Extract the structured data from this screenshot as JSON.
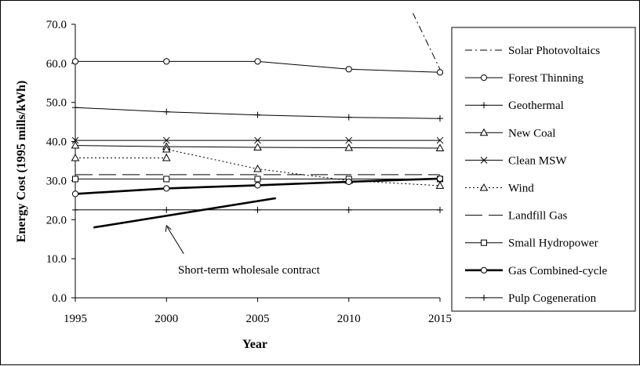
{
  "chart_data": {
    "type": "line",
    "title": "",
    "xlabel": "Year",
    "ylabel": "Energy Cost (1995 mills/kWh)",
    "x": [
      1995,
      2000,
      2005,
      2010,
      2015
    ],
    "xlim": [
      1995,
      2015
    ],
    "ylim": [
      0,
      70
    ],
    "y_ticks": [
      "0.0",
      "10.0",
      "20.0",
      "30.0",
      "40.0",
      "50.0",
      "60.0",
      "70.0"
    ],
    "x_ticks": [
      "1995",
      "2000",
      "2005",
      "2010",
      "2015"
    ],
    "grid": false,
    "legend_position": "right",
    "series": [
      {
        "name": "Solar Photovoltaics",
        "style": "dash-dot",
        "marker": "none",
        "x": [
          2013.5,
          2015
        ],
        "values": [
          73,
          58.5
        ]
      },
      {
        "name": "Forest Thinning",
        "style": "solid",
        "marker": "circle",
        "x": [
          1995,
          2000,
          2005,
          2010,
          2015
        ],
        "values": [
          60.5,
          60.5,
          60.5,
          58.5,
          57.7
        ]
      },
      {
        "name": "Geothermal",
        "style": "solid",
        "marker": "plus",
        "x": [
          1995,
          2000,
          2005,
          2010,
          2015
        ],
        "values": [
          48.7,
          47.6,
          46.8,
          46.2,
          45.9
        ]
      },
      {
        "name": "New Coal",
        "style": "solid",
        "marker": "triangle",
        "x": [
          1995,
          2000,
          2005,
          2010,
          2015
        ],
        "values": [
          39.0,
          38.7,
          38.5,
          38.4,
          38.3
        ]
      },
      {
        "name": "Clean MSW",
        "style": "solid",
        "marker": "x",
        "x": [
          1995,
          2000,
          2005,
          2010,
          2015
        ],
        "values": [
          40.3,
          40.3,
          40.3,
          40.3,
          40.3
        ]
      },
      {
        "name": "Wind",
        "style": "dotted",
        "marker": "triangle",
        "x": [
          1995,
          2000,
          2000,
          2005,
          2010,
          2015
        ],
        "values": [
          35.8,
          35.8,
          38.0,
          33.0,
          30.0,
          28.7
        ]
      },
      {
        "name": "Landfill Gas",
        "style": "long-dash",
        "marker": "none",
        "x": [
          1995,
          2015
        ],
        "values": [
          31.5,
          31.5
        ]
      },
      {
        "name": "Small Hydropower",
        "style": "solid",
        "marker": "square",
        "x": [
          1995,
          2000,
          2005,
          2010,
          2015
        ],
        "values": [
          30.4,
          30.4,
          30.4,
          30.4,
          30.4
        ]
      },
      {
        "name": "Gas Combined-cycle",
        "style": "thick",
        "marker": "circle",
        "x": [
          1995,
          2000,
          2005,
          2010,
          2015
        ],
        "values": [
          26.6,
          28.0,
          28.8,
          29.7,
          30.5
        ]
      },
      {
        "name": "Pulp Cogeneration",
        "style": "solid",
        "marker": "plus",
        "x": [
          1995,
          2000,
          2005,
          2010,
          2015
        ],
        "values": [
          22.5,
          22.5,
          22.5,
          22.5,
          22.5
        ]
      }
    ],
    "annotations": [
      {
        "text": "Short-term wholesale contract",
        "line_x": [
          1996,
          2006
        ],
        "line_values": [
          18.0,
          25.5
        ],
        "arrow_to": [
          2000,
          18.5
        ]
      }
    ]
  }
}
